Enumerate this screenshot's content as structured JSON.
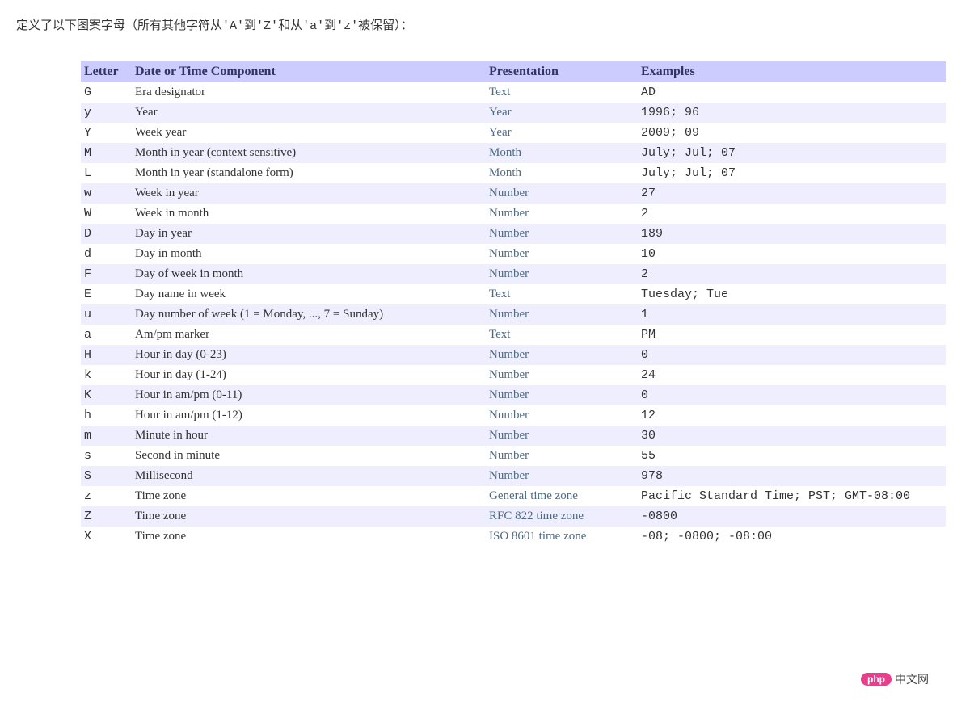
{
  "intro": {
    "prefix": "定义了以下图案字母（所有其他字符从",
    "code1": "'A'",
    "mid1": "到",
    "code2": "'Z'",
    "mid2": "和从",
    "code3": "'a'",
    "mid3": "到",
    "code4": "'z'",
    "suffix": "被保留）："
  },
  "table": {
    "headers": {
      "letter": "Letter",
      "component": "Date or Time Component",
      "presentation": "Presentation",
      "examples": "Examples"
    },
    "rows": [
      {
        "letter": "G",
        "component": "Era designator",
        "presentation": "Text",
        "examples": "AD"
      },
      {
        "letter": "y",
        "component": "Year",
        "presentation": "Year",
        "examples": "1996; 96"
      },
      {
        "letter": "Y",
        "component": "Week year",
        "presentation": "Year",
        "examples": "2009; 09"
      },
      {
        "letter": "M",
        "component": "Month in year (context sensitive)",
        "presentation": "Month",
        "examples": "July; Jul; 07"
      },
      {
        "letter": "L",
        "component": "Month in year (standalone form)",
        "presentation": "Month",
        "examples": "July; Jul; 07"
      },
      {
        "letter": "w",
        "component": "Week in year",
        "presentation": "Number",
        "examples": "27"
      },
      {
        "letter": "W",
        "component": "Week in month",
        "presentation": "Number",
        "examples": "2"
      },
      {
        "letter": "D",
        "component": "Day in year",
        "presentation": "Number",
        "examples": "189"
      },
      {
        "letter": "d",
        "component": "Day in month",
        "presentation": "Number",
        "examples": "10"
      },
      {
        "letter": "F",
        "component": "Day of week in month",
        "presentation": "Number",
        "examples": "2"
      },
      {
        "letter": "E",
        "component": "Day name in week",
        "presentation": "Text",
        "examples": "Tuesday; Tue"
      },
      {
        "letter": "u",
        "component": "Day number of week (1 = Monday, ..., 7 = Sunday)",
        "presentation": "Number",
        "examples": "1"
      },
      {
        "letter": "a",
        "component": "Am/pm marker",
        "presentation": "Text",
        "examples": "PM"
      },
      {
        "letter": "H",
        "component": "Hour in day (0-23)",
        "presentation": "Number",
        "examples": "0"
      },
      {
        "letter": "k",
        "component": "Hour in day (1-24)",
        "presentation": "Number",
        "examples": "24"
      },
      {
        "letter": "K",
        "component": "Hour in am/pm (0-11)",
        "presentation": "Number",
        "examples": "0"
      },
      {
        "letter": "h",
        "component": "Hour in am/pm (1-12)",
        "presentation": "Number",
        "examples": "12"
      },
      {
        "letter": "m",
        "component": "Minute in hour",
        "presentation": "Number",
        "examples": "30"
      },
      {
        "letter": "s",
        "component": "Second in minute",
        "presentation": "Number",
        "examples": "55"
      },
      {
        "letter": "S",
        "component": "Millisecond",
        "presentation": "Number",
        "examples": "978"
      },
      {
        "letter": "z",
        "component": "Time zone",
        "presentation": "General time zone",
        "examples": "Pacific Standard Time; PST; GMT-08:00"
      },
      {
        "letter": "Z",
        "component": "Time zone",
        "presentation": "RFC 822 time zone",
        "examples": "-0800"
      },
      {
        "letter": "X",
        "component": "Time zone",
        "presentation": "ISO 8601 time zone",
        "examples": "-08; -0800; -08:00"
      }
    ]
  },
  "watermark": {
    "badge": "php",
    "text": "中文网"
  },
  "colors": {
    "header_bg": "#ccccff",
    "header_text": "#333366",
    "row_even_bg": "#eeeeff",
    "row_odd_bg": "#ffffff",
    "link": "#4c6b87",
    "body_text": "#333333"
  }
}
